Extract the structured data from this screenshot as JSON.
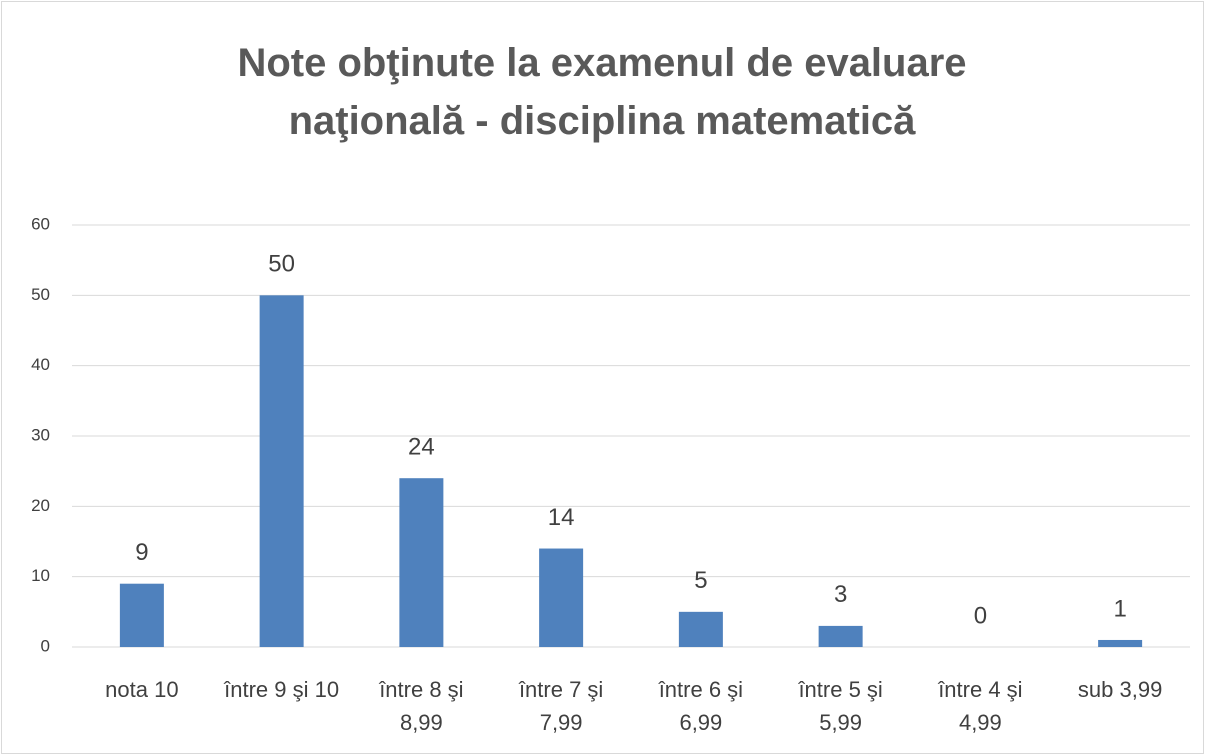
{
  "chart_data": {
    "type": "bar",
    "title": "Note obţinute la examenul de evaluare naţională - disciplina matematică",
    "categories": [
      "nota 10",
      "între 9 şi 10",
      "între 8 şi 8,99",
      "între 7 şi 7,99",
      "între 6 şi 6,99",
      "între 5 şi 5,99",
      "între 4 şi 4,99",
      "sub 3,99"
    ],
    "values": [
      9,
      50,
      24,
      14,
      5,
      3,
      0,
      1
    ],
    "color": "#4f81bd",
    "ylim": [
      0,
      60
    ],
    "yticks": [
      0,
      10,
      20,
      30,
      40,
      50,
      60
    ],
    "grid": true
  }
}
